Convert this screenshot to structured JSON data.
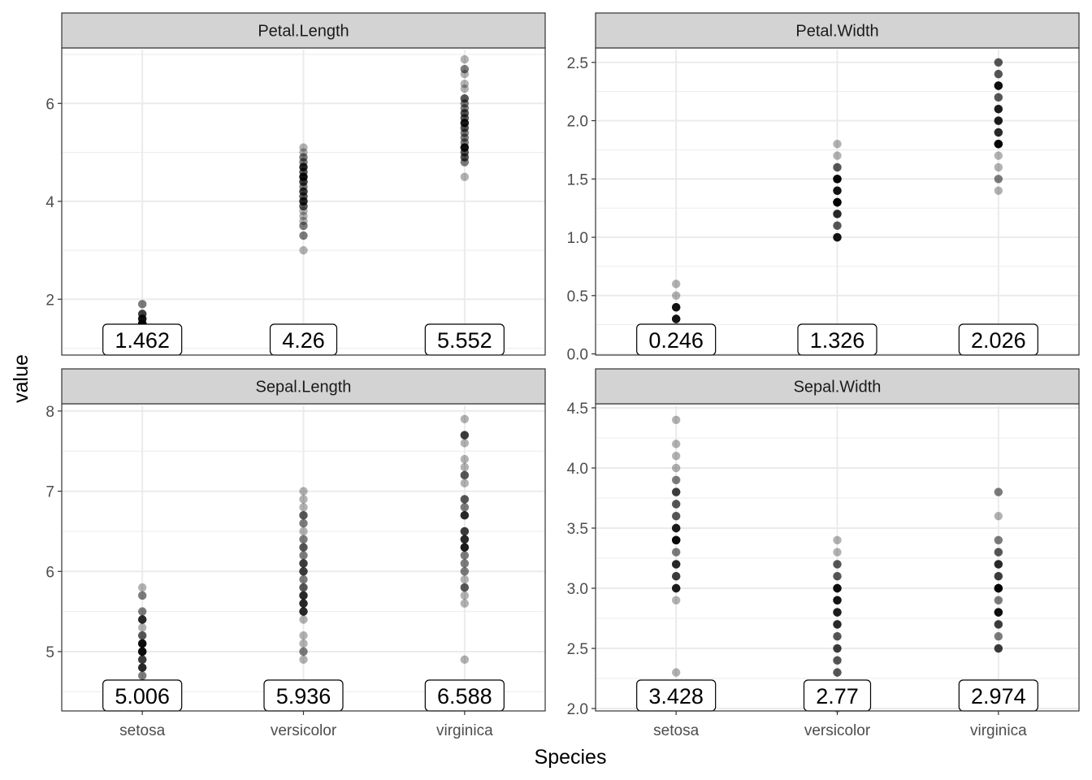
{
  "chart_data": {
    "type": "scatter",
    "xlabel": "Species",
    "ylabel": "value",
    "categories": [
      "setosa",
      "versicolor",
      "virginica"
    ],
    "facet_layout": "2x2, free y scales",
    "point_color": "#000000",
    "point_alpha": 0.3,
    "strip_fill": "#d3d3d3",
    "facets": [
      {
        "name": "Petal.Length",
        "ylim": [
          0.86,
          7.1
        ],
        "yticks": [
          2,
          4,
          6
        ],
        "ytick_labels": [
          "2",
          "4",
          "6"
        ],
        "minor_yticks": [
          1,
          3,
          5,
          7
        ],
        "series": [
          {
            "name": "setosa",
            "values": [
              1.4,
              1.4,
              1.3,
              1.5,
              1.4,
              1.7,
              1.4,
              1.5,
              1.4,
              1.5,
              1.5,
              1.6,
              1.4,
              1.1,
              1.2,
              1.5,
              1.3,
              1.4,
              1.7,
              1.5,
              1.7,
              1.5,
              1.0,
              1.7,
              1.9,
              1.6,
              1.6,
              1.5,
              1.4,
              1.6,
              1.6,
              1.5,
              1.5,
              1.4,
              1.5,
              1.2,
              1.3,
              1.4,
              1.3,
              1.5,
              1.3,
              1.3,
              1.3,
              1.6,
              1.9,
              1.4,
              1.6,
              1.4,
              1.5,
              1.4
            ]
          },
          {
            "name": "versicolor",
            "values": [
              4.7,
              4.5,
              4.9,
              4.0,
              4.6,
              4.5,
              4.7,
              3.3,
              4.6,
              3.9,
              3.5,
              4.2,
              4.0,
              4.7,
              3.6,
              4.4,
              4.5,
              4.1,
              4.5,
              3.9,
              4.8,
              4.0,
              4.9,
              4.7,
              4.3,
              4.4,
              4.8,
              5.0,
              4.5,
              3.5,
              3.8,
              3.7,
              3.9,
              5.1,
              4.5,
              4.5,
              4.7,
              4.4,
              4.1,
              4.0,
              4.4,
              4.6,
              4.0,
              3.3,
              4.2,
              4.2,
              4.2,
              4.3,
              3.0,
              4.1
            ]
          },
          {
            "name": "virginica",
            "values": [
              6.0,
              5.1,
              5.9,
              5.6,
              5.8,
              6.6,
              4.5,
              6.3,
              5.8,
              6.1,
              5.1,
              5.3,
              5.5,
              5.0,
              5.1,
              5.3,
              5.5,
              6.7,
              6.9,
              5.0,
              5.7,
              4.9,
              6.7,
              4.9,
              5.7,
              6.0,
              4.8,
              4.9,
              5.6,
              5.8,
              6.1,
              6.4,
              5.6,
              5.1,
              5.6,
              6.1,
              5.6,
              5.5,
              4.8,
              5.4,
              5.6,
              5.1,
              5.1,
              5.9,
              5.7,
              5.2,
              5.0,
              5.2,
              5.4,
              5.1
            ]
          }
        ],
        "means": [
          "1.462",
          "4.26",
          "5.552"
        ]
      },
      {
        "name": "Petal.Width",
        "ylim": [
          -0.01,
          2.61
        ],
        "yticks": [
          0.0,
          0.5,
          1.0,
          1.5,
          2.0,
          2.5
        ],
        "ytick_labels": [
          "0.0",
          "0.5",
          "1.0",
          "1.5",
          "2.0",
          "2.5"
        ],
        "minor_yticks": [
          0.25,
          0.75,
          1.25,
          1.75,
          2.25
        ],
        "series": [
          {
            "name": "setosa",
            "values": [
              0.2,
              0.2,
              0.2,
              0.2,
              0.2,
              0.4,
              0.3,
              0.2,
              0.2,
              0.1,
              0.2,
              0.2,
              0.1,
              0.1,
              0.2,
              0.4,
              0.4,
              0.3,
              0.3,
              0.3,
              0.2,
              0.4,
              0.2,
              0.5,
              0.2,
              0.2,
              0.4,
              0.2,
              0.2,
              0.2,
              0.2,
              0.4,
              0.1,
              0.2,
              0.2,
              0.2,
              0.2,
              0.1,
              0.2,
              0.2,
              0.3,
              0.3,
              0.2,
              0.6,
              0.4,
              0.3,
              0.2,
              0.2,
              0.2,
              0.2
            ]
          },
          {
            "name": "versicolor",
            "values": [
              1.4,
              1.5,
              1.5,
              1.3,
              1.5,
              1.3,
              1.6,
              1.0,
              1.3,
              1.4,
              1.0,
              1.5,
              1.0,
              1.4,
              1.3,
              1.4,
              1.5,
              1.0,
              1.5,
              1.1,
              1.8,
              1.3,
              1.5,
              1.2,
              1.3,
              1.4,
              1.4,
              1.7,
              1.5,
              1.0,
              1.1,
              1.0,
              1.2,
              1.6,
              1.5,
              1.6,
              1.5,
              1.3,
              1.3,
              1.3,
              1.2,
              1.4,
              1.2,
              1.0,
              1.3,
              1.2,
              1.3,
              1.3,
              1.1,
              1.3
            ]
          },
          {
            "name": "virginica",
            "values": [
              2.5,
              1.9,
              2.1,
              1.8,
              2.2,
              2.1,
              1.7,
              1.8,
              1.8,
              2.5,
              2.0,
              1.9,
              2.1,
              2.0,
              2.4,
              2.3,
              1.8,
              2.2,
              2.3,
              1.5,
              2.3,
              2.0,
              2.0,
              1.8,
              2.1,
              1.8,
              1.8,
              1.8,
              2.1,
              1.6,
              1.9,
              2.0,
              2.2,
              1.5,
              1.4,
              2.3,
              2.4,
              1.8,
              1.8,
              2.1,
              2.4,
              2.3,
              1.9,
              2.3,
              2.5,
              2.3,
              1.9,
              2.0,
              2.3,
              1.8
            ]
          }
        ],
        "means": [
          "0.246",
          "1.326",
          "2.026"
        ]
      },
      {
        "name": "Sepal.Length",
        "ylim": [
          4.26,
          8.07
        ],
        "yticks": [
          5,
          6,
          7,
          8
        ],
        "ytick_labels": [
          "5",
          "6",
          "7",
          "8"
        ],
        "minor_yticks": [
          4.5,
          5.5,
          6.5,
          7.5
        ],
        "series": [
          {
            "name": "setosa",
            "values": [
              5.1,
              4.9,
              4.7,
              4.6,
              5.0,
              5.4,
              4.6,
              5.0,
              4.4,
              4.9,
              5.4,
              4.8,
              4.8,
              4.3,
              5.8,
              5.7,
              5.4,
              5.1,
              5.7,
              5.1,
              5.4,
              5.1,
              4.6,
              5.1,
              4.8,
              5.0,
              5.0,
              5.2,
              5.2,
              4.7,
              4.8,
              5.4,
              5.2,
              5.5,
              4.9,
              5.0,
              5.5,
              4.9,
              4.4,
              5.1,
              5.0,
              4.5,
              4.4,
              5.0,
              5.1,
              4.8,
              5.1,
              4.6,
              5.3,
              5.0
            ]
          },
          {
            "name": "versicolor",
            "values": [
              7.0,
              6.4,
              6.9,
              5.5,
              6.5,
              5.7,
              6.3,
              4.9,
              6.6,
              5.2,
              5.0,
              5.9,
              6.0,
              6.1,
              5.6,
              6.7,
              5.6,
              5.8,
              6.2,
              5.6,
              5.9,
              6.1,
              6.3,
              6.1,
              6.4,
              6.6,
              6.8,
              6.7,
              6.0,
              5.7,
              5.5,
              5.5,
              5.8,
              6.0,
              5.4,
              6.0,
              6.7,
              6.3,
              5.6,
              5.5,
              5.5,
              6.1,
              5.8,
              5.0,
              5.6,
              5.7,
              5.7,
              6.2,
              5.1,
              5.7
            ]
          },
          {
            "name": "virginica",
            "values": [
              6.3,
              5.8,
              7.1,
              6.3,
              6.5,
              7.6,
              4.9,
              7.3,
              6.7,
              7.2,
              6.5,
              6.4,
              6.8,
              5.7,
              5.8,
              6.4,
              6.5,
              7.7,
              7.7,
              6.0,
              6.9,
              5.6,
              7.7,
              6.3,
              6.7,
              7.2,
              6.2,
              6.1,
              6.4,
              7.2,
              7.4,
              7.9,
              6.4,
              6.3,
              6.1,
              7.7,
              6.3,
              6.4,
              6.0,
              6.9,
              6.7,
              6.9,
              5.8,
              6.8,
              6.7,
              6.7,
              6.3,
              6.5,
              6.2,
              5.9
            ]
          }
        ],
        "means": [
          "5.006",
          "5.936",
          "6.588"
        ]
      },
      {
        "name": "Sepal.Width",
        "ylim": [
          1.98,
          4.52
        ],
        "yticks": [
          2.0,
          2.5,
          3.0,
          3.5,
          4.0,
          4.5
        ],
        "ytick_labels": [
          "2.0",
          "2.5",
          "3.0",
          "3.5",
          "4.0",
          "4.5"
        ],
        "minor_yticks": [
          2.25,
          2.75,
          3.25,
          3.75,
          4.25
        ],
        "series": [
          {
            "name": "setosa",
            "values": [
              3.5,
              3.0,
              3.2,
              3.1,
              3.6,
              3.9,
              3.4,
              3.4,
              2.9,
              3.1,
              3.7,
              3.4,
              3.0,
              3.0,
              4.0,
              4.4,
              3.9,
              3.5,
              3.8,
              3.8,
              3.4,
              3.7,
              3.6,
              3.3,
              3.4,
              3.0,
              3.4,
              3.5,
              3.4,
              3.2,
              3.1,
              3.4,
              4.1,
              4.2,
              3.1,
              3.2,
              3.5,
              3.6,
              3.0,
              3.4,
              3.5,
              2.3,
              3.2,
              3.5,
              3.8,
              3.0,
              3.8,
              3.2,
              3.7,
              3.3
            ]
          },
          {
            "name": "versicolor",
            "values": [
              3.2,
              3.2,
              3.1,
              2.3,
              2.8,
              2.8,
              3.3,
              2.4,
              2.9,
              2.7,
              2.0,
              3.0,
              2.2,
              2.9,
              2.9,
              3.1,
              3.0,
              2.7,
              2.2,
              2.5,
              3.2,
              2.8,
              2.5,
              2.8,
              2.9,
              3.0,
              2.8,
              3.0,
              2.9,
              2.6,
              2.4,
              2.4,
              2.7,
              2.7,
              3.0,
              3.4,
              3.1,
              2.3,
              3.0,
              2.5,
              2.6,
              3.0,
              2.6,
              2.3,
              2.7,
              3.0,
              2.9,
              2.9,
              2.5,
              2.8
            ]
          },
          {
            "name": "virginica",
            "values": [
              3.3,
              2.7,
              3.0,
              2.9,
              3.0,
              3.0,
              2.5,
              2.9,
              2.5,
              3.6,
              3.2,
              2.7,
              3.0,
              2.5,
              2.8,
              3.2,
              3.0,
              3.8,
              2.6,
              2.2,
              3.2,
              2.8,
              2.8,
              2.7,
              3.3,
              3.2,
              2.8,
              3.0,
              2.8,
              3.0,
              2.8,
              3.8,
              2.8,
              2.8,
              2.6,
              3.0,
              3.4,
              3.1,
              3.0,
              3.1,
              3.1,
              3.1,
              2.7,
              3.2,
              3.3,
              3.0,
              2.5,
              3.0,
              3.4,
              3.0
            ]
          }
        ],
        "means": [
          "3.428",
          "2.77",
          "2.974"
        ]
      }
    ]
  }
}
